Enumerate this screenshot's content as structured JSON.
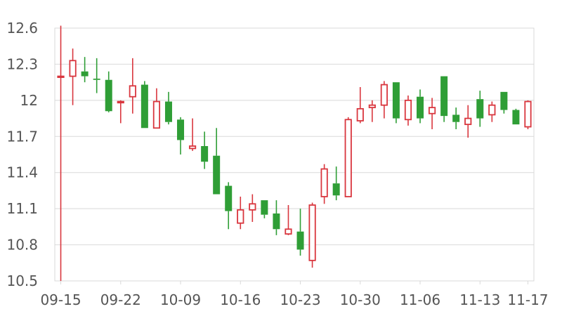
{
  "chart_data": {
    "type": "candlestick",
    "title": "",
    "xlabel": "",
    "ylabel": "",
    "ylim": [
      10.5,
      12.6
    ],
    "y_ticks": [
      "12.6",
      "12.3",
      "12",
      "11.7",
      "11.4",
      "11.1",
      "10.8",
      "10.5"
    ],
    "x_ticks": [
      {
        "label": "09-15",
        "index": 0
      },
      {
        "label": "09-22",
        "index": 5
      },
      {
        "label": "10-09",
        "index": 10
      },
      {
        "label": "10-16",
        "index": 15
      },
      {
        "label": "10-23",
        "index": 20
      },
      {
        "label": "10-30",
        "index": 25
      },
      {
        "label": "11-06",
        "index": 30
      },
      {
        "label": "11-13",
        "index": 35
      },
      {
        "label": "11-17",
        "index": 39
      }
    ],
    "grid": "horizontal",
    "colors": {
      "up": "#d9363e",
      "down": "#2f9e36",
      "grid": "#d9d9d9",
      "text": "#555555"
    },
    "candles": [
      {
        "open": 12.2,
        "close": 12.2,
        "high": 12.62,
        "low": 10.5
      },
      {
        "open": 12.2,
        "close": 12.33,
        "high": 12.43,
        "low": 11.96
      },
      {
        "open": 12.24,
        "close": 12.2,
        "high": 12.36,
        "low": 12.15
      },
      {
        "open": 12.18,
        "close": 12.17,
        "high": 12.35,
        "low": 12.06
      },
      {
        "open": 12.17,
        "close": 11.91,
        "high": 12.24,
        "low": 11.9
      },
      {
        "open": 11.98,
        "close": 11.99,
        "high": 12.0,
        "low": 11.81
      },
      {
        "open": 12.03,
        "close": 12.12,
        "high": 12.35,
        "low": 11.89
      },
      {
        "open": 12.13,
        "close": 11.77,
        "high": 12.16,
        "low": 11.77
      },
      {
        "open": 11.77,
        "close": 11.99,
        "high": 12.1,
        "low": 11.77
      },
      {
        "open": 11.99,
        "close": 11.82,
        "high": 12.07,
        "low": 11.8
      },
      {
        "open": 11.84,
        "close": 11.67,
        "high": 11.86,
        "low": 11.55
      },
      {
        "open": 11.6,
        "close": 11.62,
        "high": 11.85,
        "low": 11.58
      },
      {
        "open": 11.62,
        "close": 11.49,
        "high": 11.74,
        "low": 11.43
      },
      {
        "open": 11.54,
        "close": 11.22,
        "high": 11.77,
        "low": 11.22
      },
      {
        "open": 11.29,
        "close": 11.08,
        "high": 11.32,
        "low": 10.93
      },
      {
        "open": 10.98,
        "close": 11.09,
        "high": 11.2,
        "low": 10.93
      },
      {
        "open": 11.09,
        "close": 11.14,
        "high": 11.22,
        "low": 10.99
      },
      {
        "open": 11.17,
        "close": 11.05,
        "high": 11.17,
        "low": 11.02
      },
      {
        "open": 11.06,
        "close": 10.93,
        "high": 11.17,
        "low": 10.88
      },
      {
        "open": 10.89,
        "close": 10.93,
        "high": 11.13,
        "low": 10.88
      },
      {
        "open": 10.91,
        "close": 10.76,
        "high": 11.1,
        "low": 10.71
      },
      {
        "open": 10.67,
        "close": 11.13,
        "high": 11.15,
        "low": 10.61
      },
      {
        "open": 11.2,
        "close": 11.43,
        "high": 11.47,
        "low": 11.14
      },
      {
        "open": 11.31,
        "close": 11.21,
        "high": 11.45,
        "low": 11.17
      },
      {
        "open": 11.2,
        "close": 11.84,
        "high": 11.86,
        "low": 11.2
      },
      {
        "open": 11.83,
        "close": 11.93,
        "high": 12.11,
        "low": 11.81
      },
      {
        "open": 11.94,
        "close": 11.96,
        "high": 12.0,
        "low": 11.82
      },
      {
        "open": 11.96,
        "close": 12.13,
        "high": 12.16,
        "low": 11.85
      },
      {
        "open": 12.15,
        "close": 11.85,
        "high": 12.15,
        "low": 11.81
      },
      {
        "open": 11.84,
        "close": 12.0,
        "high": 12.04,
        "low": 11.79
      },
      {
        "open": 12.03,
        "close": 11.85,
        "high": 12.09,
        "low": 11.81
      },
      {
        "open": 11.89,
        "close": 11.94,
        "high": 12.02,
        "low": 11.76
      },
      {
        "open": 12.2,
        "close": 11.87,
        "high": 12.2,
        "low": 11.82
      },
      {
        "open": 11.88,
        "close": 11.82,
        "high": 11.94,
        "low": 11.76
      },
      {
        "open": 11.8,
        "close": 11.85,
        "high": 11.96,
        "low": 11.69
      },
      {
        "open": 12.01,
        "close": 11.85,
        "high": 12.08,
        "low": 11.78
      },
      {
        "open": 11.88,
        "close": 11.96,
        "high": 11.99,
        "low": 11.82
      },
      {
        "open": 12.07,
        "close": 11.92,
        "high": 12.07,
        "low": 11.89
      },
      {
        "open": 11.92,
        "close": 11.8,
        "high": 11.93,
        "low": 11.8
      },
      {
        "open": 11.78,
        "close": 11.99,
        "high": 12.0,
        "low": 11.76
      }
    ]
  }
}
